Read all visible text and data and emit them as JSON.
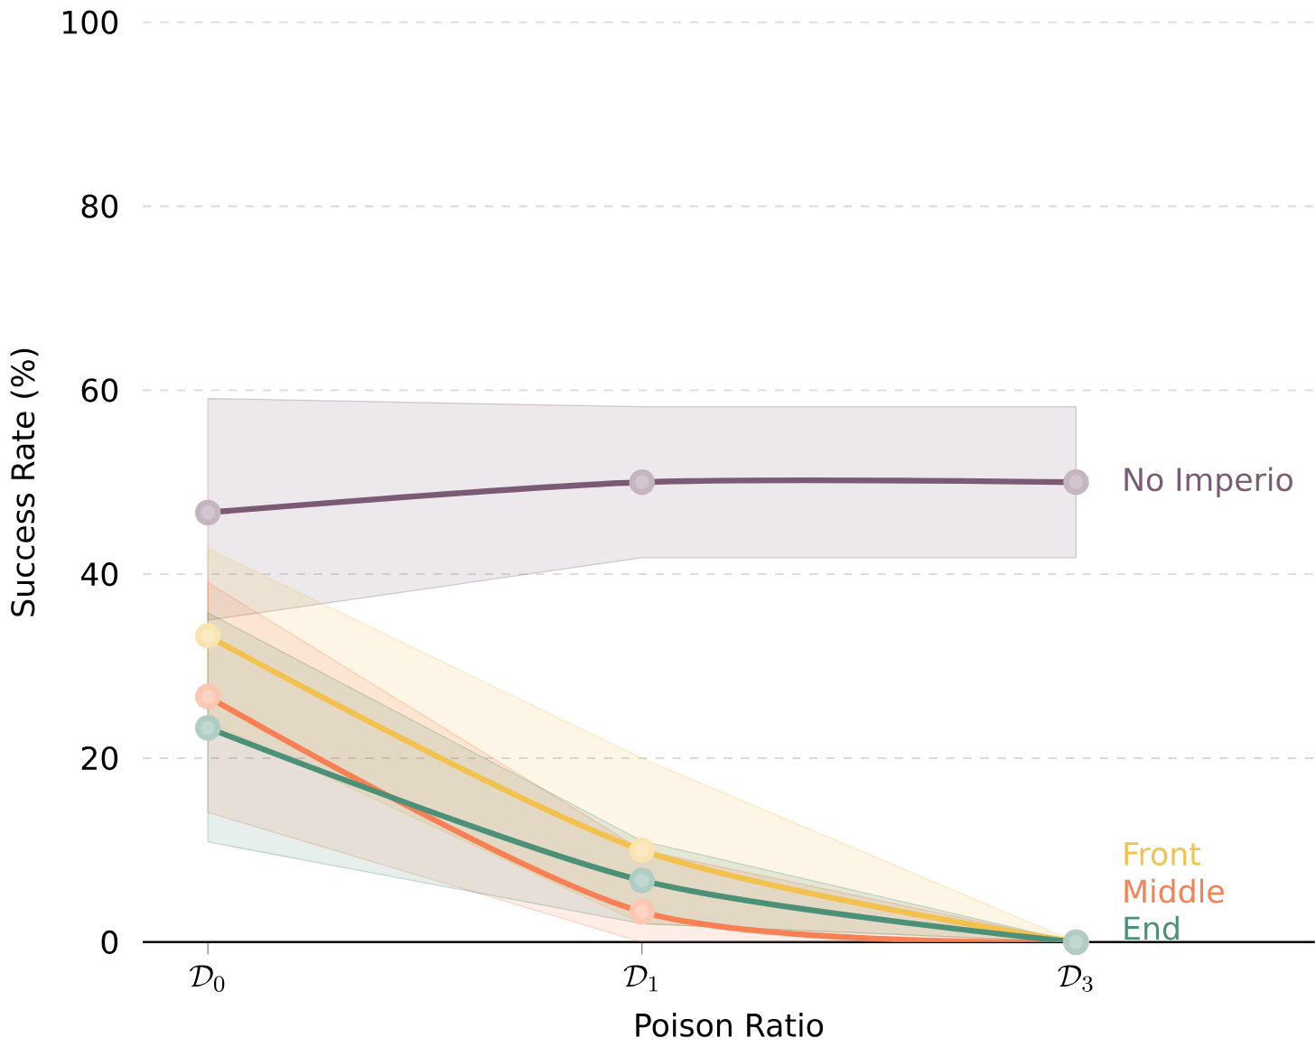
{
  "chart_data": {
    "type": "line",
    "xlabel": "Poison Ratio",
    "ylabel": "Success Rate (%)",
    "categories": [
      "\\mathcal{D}_0",
      "\\mathcal{D}_1",
      "\\mathcal{D}_3"
    ],
    "series": [
      {
        "name": "No Imperio",
        "color": "#7b5a74",
        "values": [
          46.7,
          50,
          50
        ],
        "lower": [
          35,
          41.8,
          41.8
        ],
        "upper": [
          59.1,
          58.2,
          58.2
        ]
      },
      {
        "name": "Front",
        "color": "#f2c14e",
        "values": [
          33.3,
          10,
          0
        ],
        "lower": [
          24,
          2,
          0
        ],
        "upper": [
          42.8,
          20,
          0
        ]
      },
      {
        "name": "Middle",
        "color": "#f78154",
        "values": [
          26.7,
          3.3,
          0
        ],
        "lower": [
          14.1,
          0,
          0
        ],
        "upper": [
          39.1,
          10,
          0
        ]
      },
      {
        "name": "End",
        "color": "#4d9078",
        "values": [
          23.3,
          6.7,
          0
        ],
        "lower": [
          10.9,
          2,
          0
        ],
        "upper": [
          35.8,
          11,
          0
        ]
      }
    ],
    "ylim": [
      0,
      100
    ],
    "yticks": [
      0,
      20,
      40,
      60,
      80,
      100
    ],
    "grid": "y",
    "legend": "right",
    "marker": "circle",
    "line_style": "solid"
  }
}
